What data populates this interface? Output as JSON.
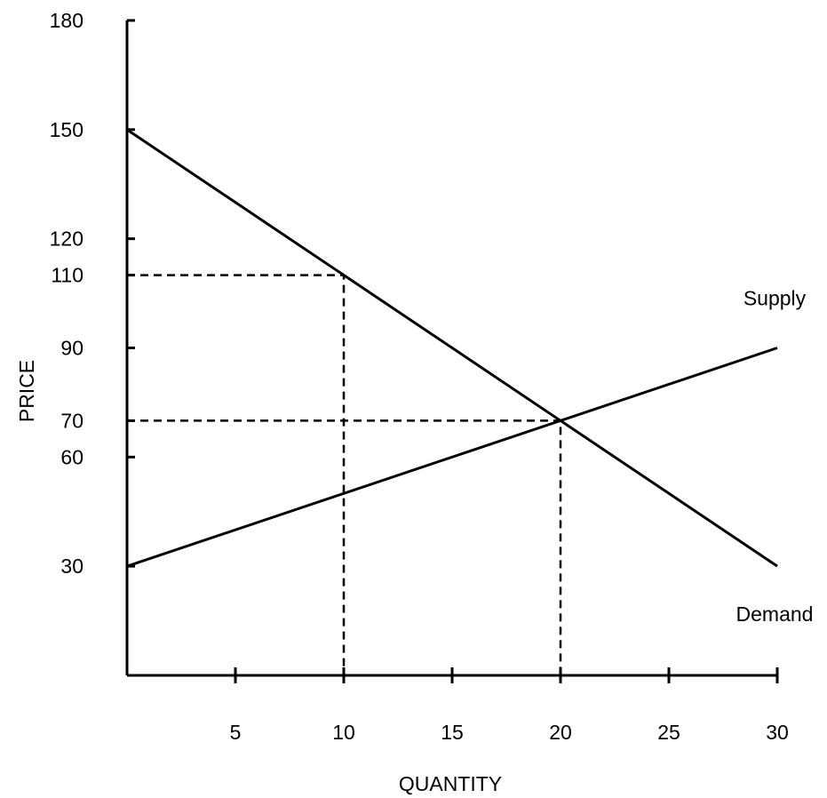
{
  "chart_data": {
    "type": "line",
    "title": "",
    "xlabel": "QUANTITY",
    "ylabel": "PRICE",
    "xlim": [
      0,
      30
    ],
    "ylim": [
      0,
      180
    ],
    "x_ticks": [
      5,
      10,
      15,
      20,
      25,
      30
    ],
    "y_ticks": [
      30,
      60,
      70,
      90,
      110,
      120,
      150,
      180
    ],
    "grid": false,
    "series": [
      {
        "name": "Supply",
        "x": [
          0,
          30
        ],
        "y": [
          30,
          90
        ]
      },
      {
        "name": "Demand",
        "x": [
          0,
          30
        ],
        "y": [
          150,
          30
        ]
      }
    ],
    "reference_lines": [
      {
        "x": [
          0,
          10,
          10
        ],
        "y": [
          110,
          110,
          0
        ]
      },
      {
        "x": [
          0,
          20,
          20
        ],
        "y": [
          70,
          70,
          0
        ]
      }
    ],
    "colors": {
      "line": "#000000",
      "background": "#ffffff"
    }
  }
}
